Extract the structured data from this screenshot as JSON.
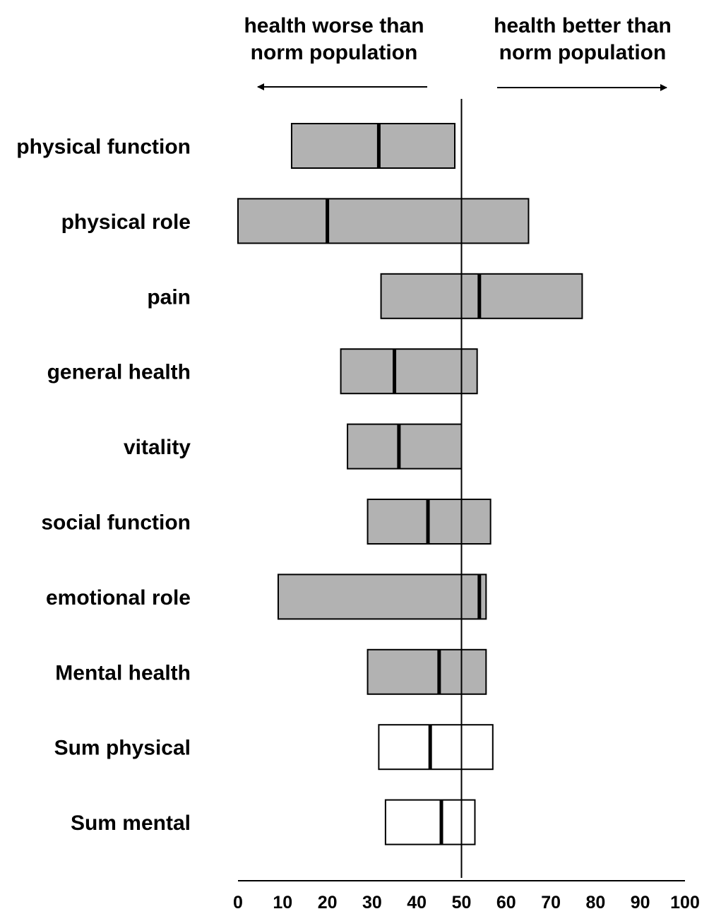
{
  "header": {
    "left_line1": "health worse than",
    "left_line2": "norm population",
    "right_line1": "health better than",
    "right_line2": "norm population"
  },
  "chart_data": {
    "type": "box",
    "categories": [
      "physical function",
      "physical role",
      "pain",
      "general health",
      "vitality",
      "social function",
      "emotional role",
      "Mental health",
      "Sum physical",
      "Sum mental"
    ],
    "series": [
      {
        "low": [
          12,
          0,
          32,
          23,
          24.5,
          29,
          9,
          29,
          31.5,
          33
        ],
        "median": [
          31.5,
          20,
          54,
          35,
          36,
          42.5,
          54,
          45,
          43,
          45.5
        ],
        "high": [
          48.5,
          65,
          77,
          53.5,
          50,
          56.5,
          55.5,
          55.5,
          57,
          53
        ]
      }
    ],
    "box_fill": [
      "#b2b2b2",
      "#b2b2b2",
      "#b2b2b2",
      "#b2b2b2",
      "#b2b2b2",
      "#b2b2b2",
      "#b2b2b2",
      "#b2b2b2",
      "#ffffff",
      "#ffffff"
    ],
    "reference_line": 50,
    "xlim": [
      0,
      100
    ],
    "xticks": [
      0,
      10,
      20,
      30,
      40,
      50,
      60,
      70,
      80,
      90,
      100
    ],
    "grid": false,
    "legend": "none"
  }
}
